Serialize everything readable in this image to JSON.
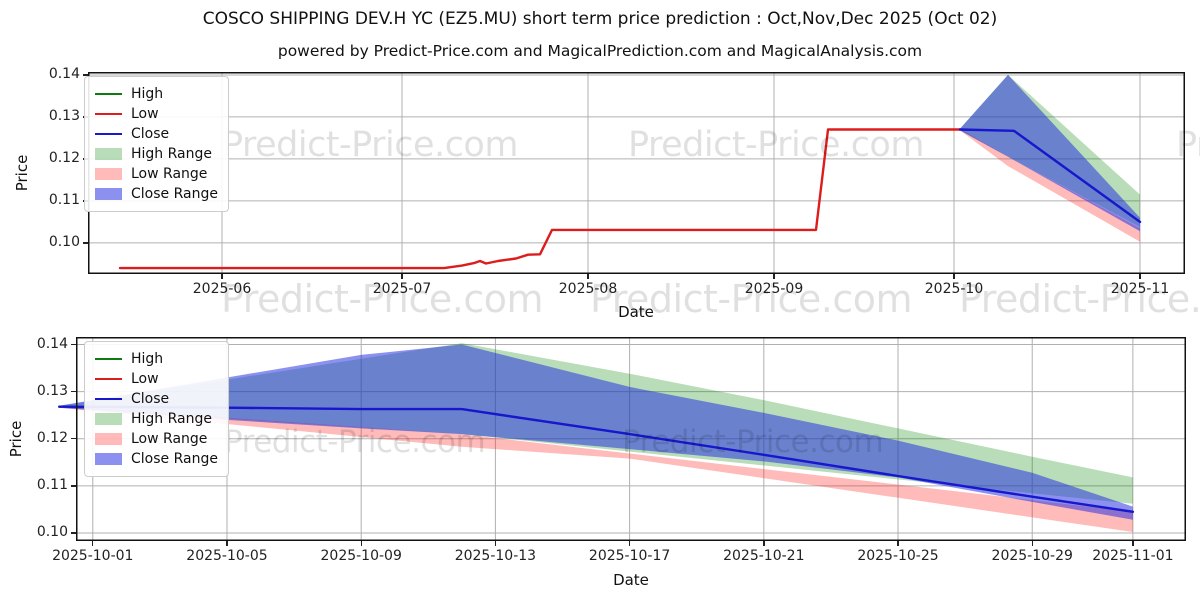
{
  "title": "COSCO SHIPPING DEV.H YC (EZ5.MU) short term price prediction : Oct,Nov,Dec 2025 (Oct 02)",
  "subtitle": "powered by Predict-Price.com and MagicalPrediction.com and MagicalAnalysis.com",
  "watermark_text": "Predict-Price.com",
  "colors": {
    "high": "#0f7a0f",
    "low": "#dd1c1c",
    "close": "#1717cc",
    "high_range_fill": "rgba(0,132,0,0.28)",
    "low_range_fill": "rgba(255,28,28,0.30)",
    "close_range_fill": "rgba(38,48,226,0.53)",
    "grid": "#b0b0b0",
    "spine": "#111111"
  },
  "legend": {
    "items": [
      {
        "label": "High",
        "key": "high",
        "swatch": "line"
      },
      {
        "label": "Low",
        "key": "low",
        "swatch": "line"
      },
      {
        "label": "Close",
        "key": "close",
        "swatch": "line"
      },
      {
        "label": "High Range",
        "key": "high_range_fill",
        "swatch": "patch"
      },
      {
        "label": "Low Range",
        "key": "low_range_fill",
        "swatch": "patch"
      },
      {
        "label": "Close Range",
        "key": "close_range_fill",
        "swatch": "patch"
      }
    ]
  },
  "chart_data": [
    {
      "type": "line",
      "name": "history-and-prediction",
      "xlabel": "Date",
      "ylabel": "Price",
      "grid": true,
      "legend_position": "upper left",
      "x_ticks": [
        "2025-06",
        "2025-07",
        "2025-08",
        "2025-09",
        "2025-10",
        "2025-11"
      ],
      "y_ticks": [
        "0.10",
        "0.11",
        "0.12",
        "0.13",
        "0.14"
      ],
      "ylim": [
        0.0926,
        0.1407
      ],
      "series": [
        {
          "name": "Low",
          "color_key": "low",
          "points": [
            [
              "2025-05-15",
              0.094
            ],
            [
              "2025-07-08",
              0.094
            ],
            [
              "2025-07-11",
              0.0946
            ],
            [
              "2025-07-13",
              0.0952
            ],
            [
              "2025-07-14",
              0.0957
            ],
            [
              "2025-07-15",
              0.0951
            ],
            [
              "2025-07-17",
              0.0957
            ],
            [
              "2025-07-20",
              0.0963
            ],
            [
              "2025-07-22",
              0.0972
            ],
            [
              "2025-07-24",
              0.0973
            ],
            [
              "2025-07-26",
              0.1031
            ],
            [
              "2025-09-08",
              0.1031
            ],
            [
              "2025-09-10",
              0.127
            ],
            [
              "2025-10-02",
              0.127
            ]
          ]
        },
        {
          "name": "Close",
          "color_key": "close",
          "points": [
            [
              "2025-10-02",
              0.127
            ],
            [
              "2025-10-11",
              0.1267
            ],
            [
              "2025-11-01",
              0.105
            ]
          ]
        }
      ],
      "bands": [
        {
          "name": "High Range",
          "color_key": "high_range_fill",
          "upper": [
            [
              "2025-10-02",
              0.1272
            ],
            [
              "2025-10-10",
              0.14
            ],
            [
              "2025-11-01",
              0.1115
            ]
          ],
          "lower": [
            [
              "2025-10-02",
              0.1268
            ],
            [
              "2025-10-10",
              0.1205
            ],
            [
              "2025-11-01",
              0.1038
            ]
          ]
        },
        {
          "name": "Low Range",
          "color_key": "low_range_fill",
          "upper": [
            [
              "2025-10-02",
              0.1272
            ],
            [
              "2025-10-10",
              0.1205
            ],
            [
              "2025-11-01",
              0.1035
            ]
          ],
          "lower": [
            [
              "2025-10-02",
              0.1268
            ],
            [
              "2025-10-10",
              0.1183
            ],
            [
              "2025-11-01",
              0.1003
            ]
          ]
        },
        {
          "name": "Close Range",
          "color_key": "close_range_fill",
          "upper": [
            [
              "2025-10-02",
              0.1272
            ],
            [
              "2025-10-10",
              0.14
            ],
            [
              "2025-11-01",
              0.106
            ]
          ],
          "lower": [
            [
              "2025-10-02",
              0.1268
            ],
            [
              "2025-10-10",
              0.1205
            ],
            [
              "2025-11-01",
              0.1028
            ]
          ]
        }
      ]
    },
    {
      "type": "line",
      "name": "prediction-detail",
      "xlabel": "Date",
      "ylabel": "Price",
      "grid": true,
      "legend_position": "upper left",
      "x_ticks": [
        "2025-10-01",
        "2025-10-05",
        "2025-10-09",
        "2025-10-13",
        "2025-10-17",
        "2025-10-21",
        "2025-10-25",
        "2025-10-29",
        "2025-11-01"
      ],
      "y_ticks": [
        "0.10",
        "0.11",
        "0.12",
        "0.13",
        "0.14"
      ],
      "ylim": [
        0.0983,
        0.1416
      ],
      "series": [
        {
          "name": "Close",
          "color_key": "close",
          "points": [
            [
              "2025-09-30",
              0.1268
            ],
            [
              "2025-10-05",
              0.1266
            ],
            [
              "2025-10-09",
              0.1263
            ],
            [
              "2025-10-12",
              0.1263
            ],
            [
              "2025-10-17",
              0.121
            ],
            [
              "2025-10-21",
              0.1166
            ],
            [
              "2025-10-25",
              0.1121
            ],
            [
              "2025-10-29",
              0.1077
            ],
            [
              "2025-11-01",
              0.1045
            ]
          ]
        }
      ],
      "bands": [
        {
          "name": "High Range",
          "color_key": "high_range_fill",
          "upper": [
            [
              "2025-09-30",
              0.127
            ],
            [
              "2025-10-12",
              0.1403
            ],
            [
              "2025-10-17",
              0.1338
            ],
            [
              "2025-10-21",
              0.1282
            ],
            [
              "2025-10-25",
              0.1222
            ],
            [
              "2025-10-29",
              0.1162
            ],
            [
              "2025-11-01",
              0.1118
            ]
          ],
          "lower": [
            [
              "2025-09-30",
              0.1266
            ],
            [
              "2025-10-12",
              0.121
            ],
            [
              "2025-11-01",
              0.1062
            ]
          ]
        },
        {
          "name": "Low Range",
          "color_key": "low_range_fill",
          "upper": [
            [
              "2025-09-30",
              0.127
            ],
            [
              "2025-10-12",
              0.121
            ],
            [
              "2025-11-01",
              0.1045
            ]
          ],
          "lower": [
            [
              "2025-09-30",
              0.1266
            ],
            [
              "2025-10-12",
              0.1183
            ],
            [
              "2025-10-17",
              0.1158
            ],
            [
              "2025-11-01",
              0.1002
            ]
          ]
        },
        {
          "name": "Close Range",
          "color_key": "close_range_fill",
          "upper": [
            [
              "2025-09-30",
              0.127
            ],
            [
              "2025-10-05",
              0.133
            ],
            [
              "2025-10-09",
              0.1378
            ],
            [
              "2025-10-12",
              0.14
            ],
            [
              "2025-10-17",
              0.131
            ],
            [
              "2025-10-21",
              0.1255
            ],
            [
              "2025-10-25",
              0.1196
            ],
            [
              "2025-10-29",
              0.1128
            ],
            [
              "2025-11-01",
              0.1056
            ]
          ],
          "lower": [
            [
              "2025-09-30",
              0.1266
            ],
            [
              "2025-10-05",
              0.124
            ],
            [
              "2025-10-09",
              0.1222
            ],
            [
              "2025-10-12",
              0.121
            ],
            [
              "2025-10-17",
              0.1178
            ],
            [
              "2025-10-21",
              0.1152
            ],
            [
              "2025-10-25",
              0.1118
            ],
            [
              "2025-10-29",
              0.1066
            ],
            [
              "2025-11-01",
              0.1028
            ]
          ]
        }
      ]
    }
  ]
}
